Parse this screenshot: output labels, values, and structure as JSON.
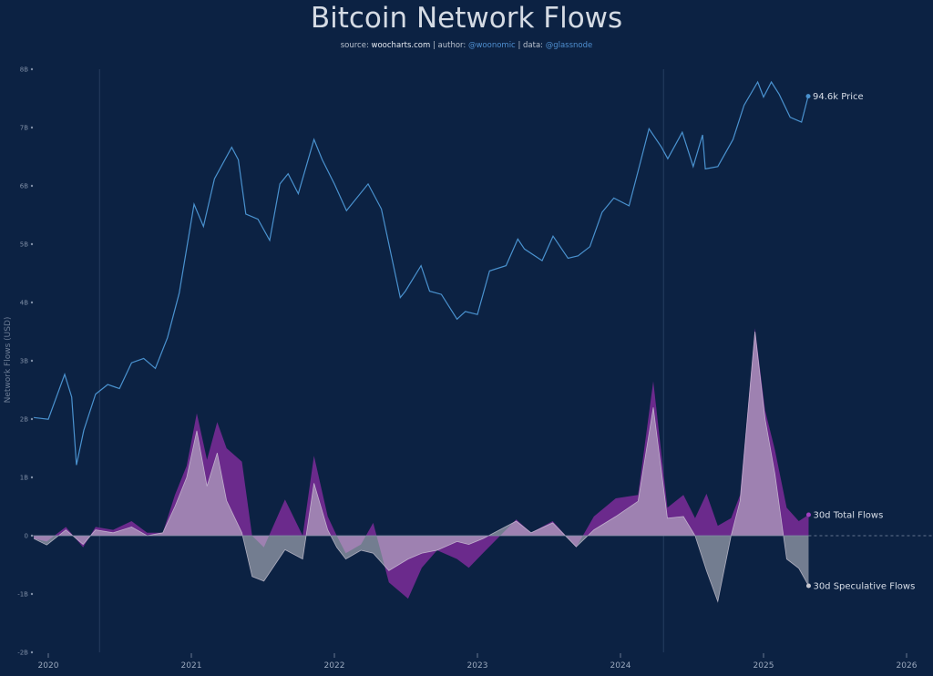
{
  "chart_data": {
    "type": "line+area",
    "title": "Bitcoin Network Flows",
    "subtitle": {
      "source_prefix": "source:",
      "source": "woocharts.com",
      "author_prefix": "| author:",
      "author": "@woonomic",
      "data_prefix": "| data:",
      "data": "@glassnode"
    },
    "ylabel": "Network Flows (USD)",
    "yticks": [
      "8B",
      "7B",
      "6B",
      "5B",
      "4B",
      "3B",
      "2B",
      "1B",
      "0",
      "-1B",
      "-2B"
    ],
    "ylim": [
      -2,
      8
    ],
    "y_unit": "B USD",
    "xticks": [
      "2020",
      "2021",
      "2022",
      "2023",
      "2024",
      "2025",
      "2026"
    ],
    "xlim": [
      "2019-11-20",
      "2026-01-20"
    ],
    "grid": false,
    "legend": "end-of-line labels",
    "colors": {
      "background": "#0c2243",
      "price": "#4a92cf",
      "total_flows": "#6b2a8c",
      "speculative_flows": "#c9c9cf",
      "zero_line": "#7f8ea6"
    },
    "annotations": {
      "vertical_markers": [
        "2020-05-11",
        "2024-04-20"
      ]
    },
    "series": [
      {
        "name": "Price",
        "end_label": "94.6k Price",
        "scale": "log (hidden axis)",
        "unit": "k USD",
        "x": [
          "2019-11-25",
          "2020-01-01",
          "2020-02-12",
          "2020-03-01",
          "2020-03-13",
          "2020-04-01",
          "2020-05-01",
          "2020-06-01",
          "2020-07-01",
          "2020-08-01",
          "2020-09-01",
          "2020-10-01",
          "2020-11-01",
          "2020-12-01",
          "2021-01-08",
          "2021-02-01",
          "2021-03-01",
          "2021-04-14",
          "2021-05-01",
          "2021-05-20",
          "2021-06-20",
          "2021-07-20",
          "2021-08-15",
          "2021-09-05",
          "2021-10-01",
          "2021-11-10",
          "2021-12-01",
          "2022-01-01",
          "2022-02-01",
          "2022-03-28",
          "2022-05-01",
          "2022-06-18",
          "2022-07-01",
          "2022-08-10",
          "2022-09-01",
          "2022-10-01",
          "2022-11-10",
          "2022-12-01",
          "2023-01-01",
          "2023-02-01",
          "2023-03-15",
          "2023-04-14",
          "2023-05-01",
          "2023-06-15",
          "2023-07-13",
          "2023-08-20",
          "2023-09-15",
          "2023-10-15",
          "2023-11-15",
          "2023-12-15",
          "2024-01-23",
          "2024-02-15",
          "2024-03-14",
          "2024-04-15",
          "2024-05-01",
          "2024-06-07",
          "2024-07-05",
          "2024-07-29",
          "2024-08-05",
          "2024-09-06",
          "2024-10-15",
          "2024-11-12",
          "2024-12-17",
          "2025-01-01",
          "2025-01-21",
          "2025-02-10",
          "2025-03-10",
          "2025-04-08",
          "2025-04-25"
        ],
        "values": [
          7.3,
          7.2,
          10.3,
          8.6,
          5.0,
          6.6,
          8.8,
          9.5,
          9.2,
          11.3,
          11.7,
          10.8,
          13.8,
          19.7,
          40.0,
          33.5,
          49.0,
          63.0,
          57.0,
          37.0,
          35.5,
          30.0,
          47.0,
          51.0,
          43.5,
          67.0,
          57.0,
          47.0,
          38.0,
          47.0,
          38.5,
          19.0,
          20.0,
          24.5,
          20.0,
          19.5,
          16.0,
          17.0,
          16.6,
          23.5,
          24.5,
          30.3,
          28.0,
          25.5,
          31.0,
          26.0,
          26.5,
          28.5,
          37.5,
          42.0,
          39.5,
          52.0,
          73.0,
          63.0,
          57.5,
          71.0,
          54.0,
          69.5,
          53.0,
          54.0,
          67.0,
          88.0,
          106.0,
          94.0,
          106.0,
          96.0,
          80.0,
          77.0,
          94.6
        ]
      },
      {
        "name": "30d Total Flows",
        "end_label": "30d Total Flows",
        "unit": "B USD",
        "x": [
          "2019-11-25",
          "2019-12-28",
          "2020-02-15",
          "2020-03-30",
          "2020-05-01",
          "2020-06-15",
          "2020-08-01",
          "2020-09-10",
          "2020-10-20",
          "2020-11-20",
          "2020-12-20",
          "2021-01-15",
          "2021-02-10",
          "2021-03-08",
          "2021-04-01",
          "2021-05-10",
          "2021-06-05",
          "2021-07-05",
          "2021-08-28",
          "2021-10-12",
          "2021-11-10",
          "2021-12-15",
          "2022-01-07",
          "2022-01-30",
          "2022-03-10",
          "2022-04-10",
          "2022-05-20",
          "2022-07-08",
          "2022-08-12",
          "2022-09-20",
          "2022-11-10",
          "2022-12-10",
          "2023-01-15",
          "2023-04-10",
          "2023-05-18",
          "2023-07-12",
          "2023-09-10",
          "2023-10-25",
          "2023-12-20",
          "2024-02-15",
          "2024-03-25",
          "2024-04-30",
          "2024-06-10",
          "2024-07-10",
          "2024-08-08",
          "2024-09-06",
          "2024-10-10",
          "2024-11-02",
          "2024-12-10",
          "2025-01-05",
          "2025-01-30",
          "2025-03-01",
          "2025-04-01",
          "2025-04-26"
        ],
        "values": [
          -0.05,
          -0.1,
          0.15,
          -0.2,
          0.15,
          0.1,
          0.25,
          0.05,
          0.05,
          0.7,
          1.2,
          2.1,
          1.3,
          1.95,
          1.5,
          1.27,
          0,
          -0.2,
          0.62,
          0,
          1.37,
          0.33,
          0,
          -0.3,
          -0.15,
          0.22,
          -0.8,
          -1.08,
          -0.55,
          -0.25,
          -0.4,
          -0.55,
          -0.3,
          0.28,
          0.05,
          0.25,
          -0.2,
          0.33,
          0.64,
          0.7,
          2.65,
          0.48,
          0.7,
          0.3,
          0.72,
          0.17,
          0.3,
          0.7,
          3.56,
          2.15,
          1.47,
          0.48,
          0.25,
          0.36
        ]
      },
      {
        "name": "30d Speculative Flows",
        "end_label": "30d Speculative Flows",
        "unit": "B USD",
        "x": [
          "2019-11-25",
          "2019-12-28",
          "2020-02-15",
          "2020-03-30",
          "2020-05-01",
          "2020-06-15",
          "2020-08-01",
          "2020-09-10",
          "2020-10-20",
          "2020-11-20",
          "2020-12-20",
          "2021-01-15",
          "2021-02-10",
          "2021-03-08",
          "2021-04-01",
          "2021-05-10",
          "2021-06-05",
          "2021-07-05",
          "2021-08-28",
          "2021-10-12",
          "2021-11-10",
          "2021-12-15",
          "2022-01-07",
          "2022-01-30",
          "2022-03-10",
          "2022-04-10",
          "2022-05-20",
          "2022-07-08",
          "2022-08-12",
          "2022-09-20",
          "2022-11-10",
          "2022-12-10",
          "2023-01-15",
          "2023-04-10",
          "2023-05-18",
          "2023-07-12",
          "2023-09-10",
          "2023-10-25",
          "2023-12-20",
          "2024-02-15",
          "2024-03-25",
          "2024-04-30",
          "2024-06-10",
          "2024-07-10",
          "2024-08-08",
          "2024-09-06",
          "2024-10-10",
          "2024-11-02",
          "2024-12-10",
          "2025-01-05",
          "2025-01-30",
          "2025-03-01",
          "2025-04-01",
          "2025-04-26"
        ],
        "values": [
          -0.05,
          -0.16,
          0.1,
          -0.15,
          0.1,
          0.05,
          0.15,
          0.0,
          0.05,
          0.5,
          1.0,
          1.8,
          0.85,
          1.42,
          0.6,
          0.05,
          -0.7,
          -0.78,
          -0.24,
          -0.4,
          0.9,
          0.1,
          -0.2,
          -0.4,
          -0.25,
          -0.3,
          -0.6,
          -0.4,
          -0.3,
          -0.25,
          -0.1,
          -0.15,
          -0.05,
          0.25,
          0.05,
          0.22,
          -0.19,
          0.1,
          0.33,
          0.59,
          2.2,
          0.3,
          0.33,
          0.0,
          -0.6,
          -1.13,
          0.0,
          0.6,
          3.5,
          2.0,
          1.06,
          -0.4,
          -0.56,
          -0.86
        ]
      }
    ]
  }
}
